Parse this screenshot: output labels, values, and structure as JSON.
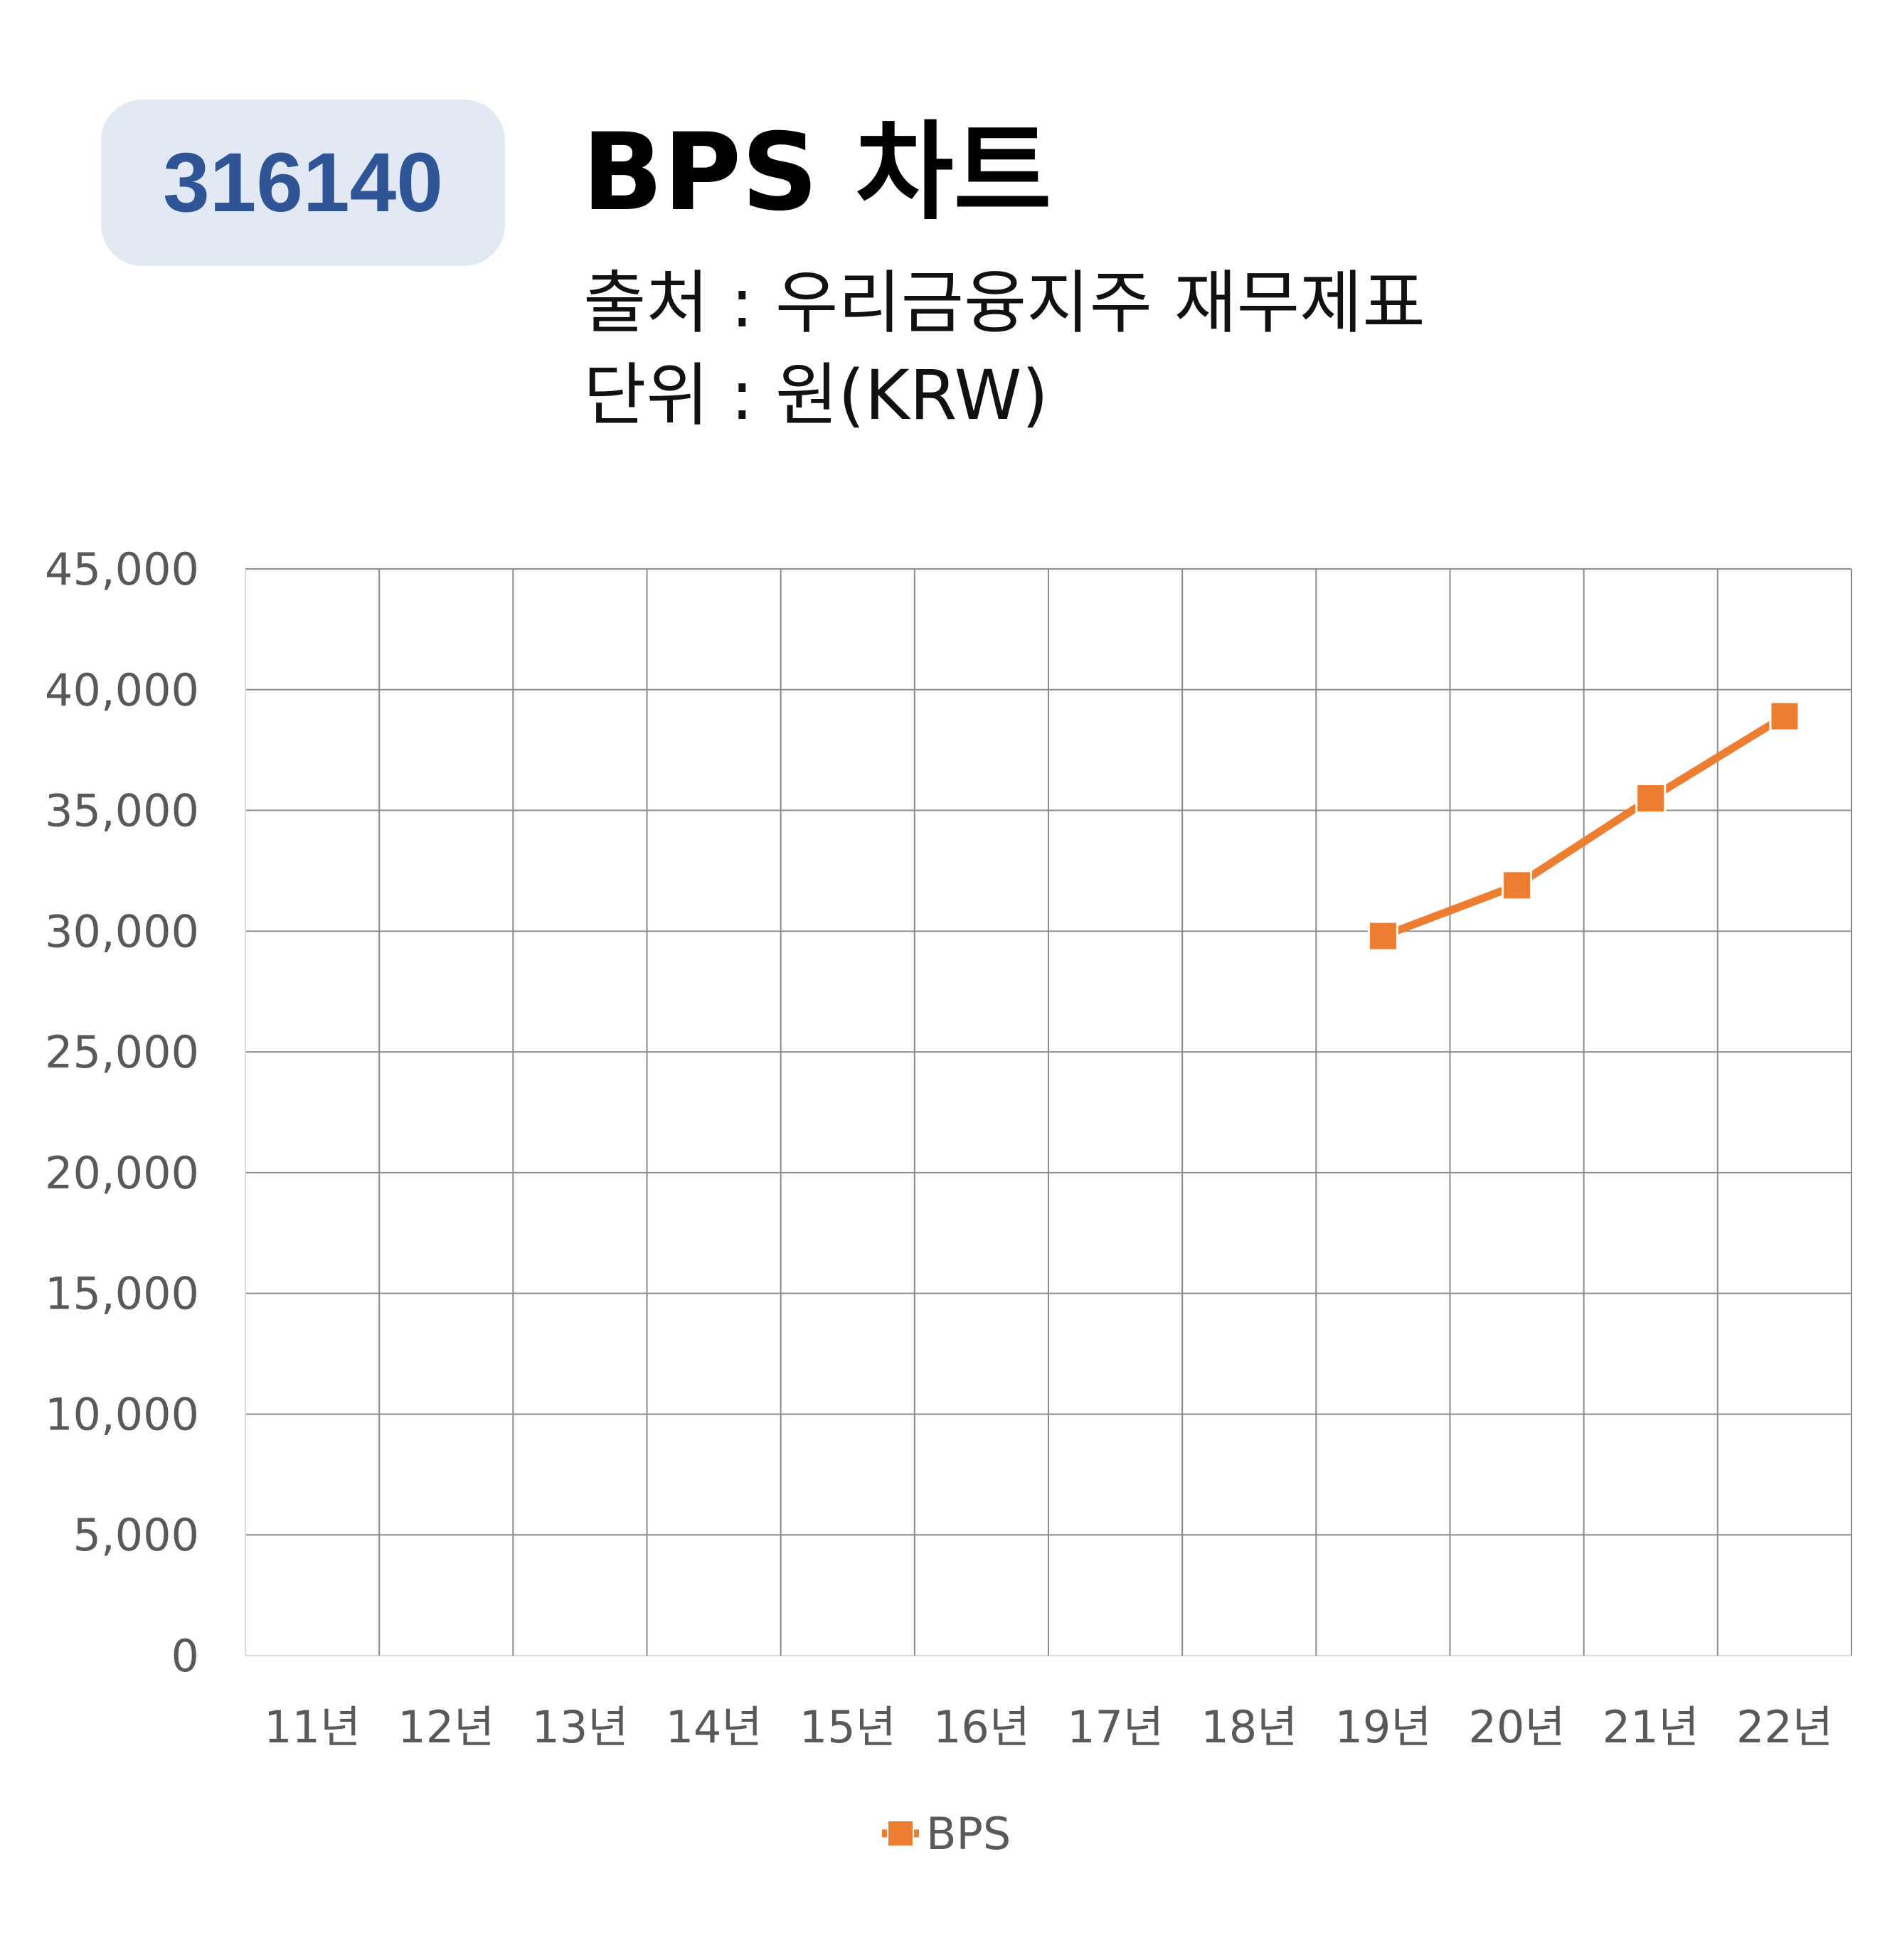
{
  "badge": {
    "code": "316140"
  },
  "header": {
    "title": "BPS 차트",
    "source": "출처 : 우리금융지주 재무제표",
    "unit": "단위 : 원(KRW)"
  },
  "chart_data": {
    "type": "line",
    "title": "BPS 차트",
    "xlabel": "",
    "ylabel": "",
    "categories": [
      "11년",
      "12년",
      "13년",
      "14년",
      "15년",
      "16년",
      "17년",
      "18년",
      "19년",
      "20년",
      "21년",
      "22년"
    ],
    "series": [
      {
        "name": "BPS",
        "color": "#ed7d31",
        "marker": "square",
        "values": [
          null,
          null,
          null,
          null,
          null,
          null,
          null,
          null,
          29800,
          31900,
          35500,
          38900
        ]
      }
    ],
    "ylim": [
      0,
      45000
    ],
    "yticks": [
      0,
      5000,
      10000,
      15000,
      20000,
      25000,
      30000,
      35000,
      40000,
      45000
    ],
    "ytick_labels": [
      "0",
      "5,000",
      "10,000",
      "15,000",
      "20,000",
      "25,000",
      "30,000",
      "35,000",
      "40,000",
      "45,000"
    ],
    "grid": true,
    "legend": "bottom-center"
  }
}
